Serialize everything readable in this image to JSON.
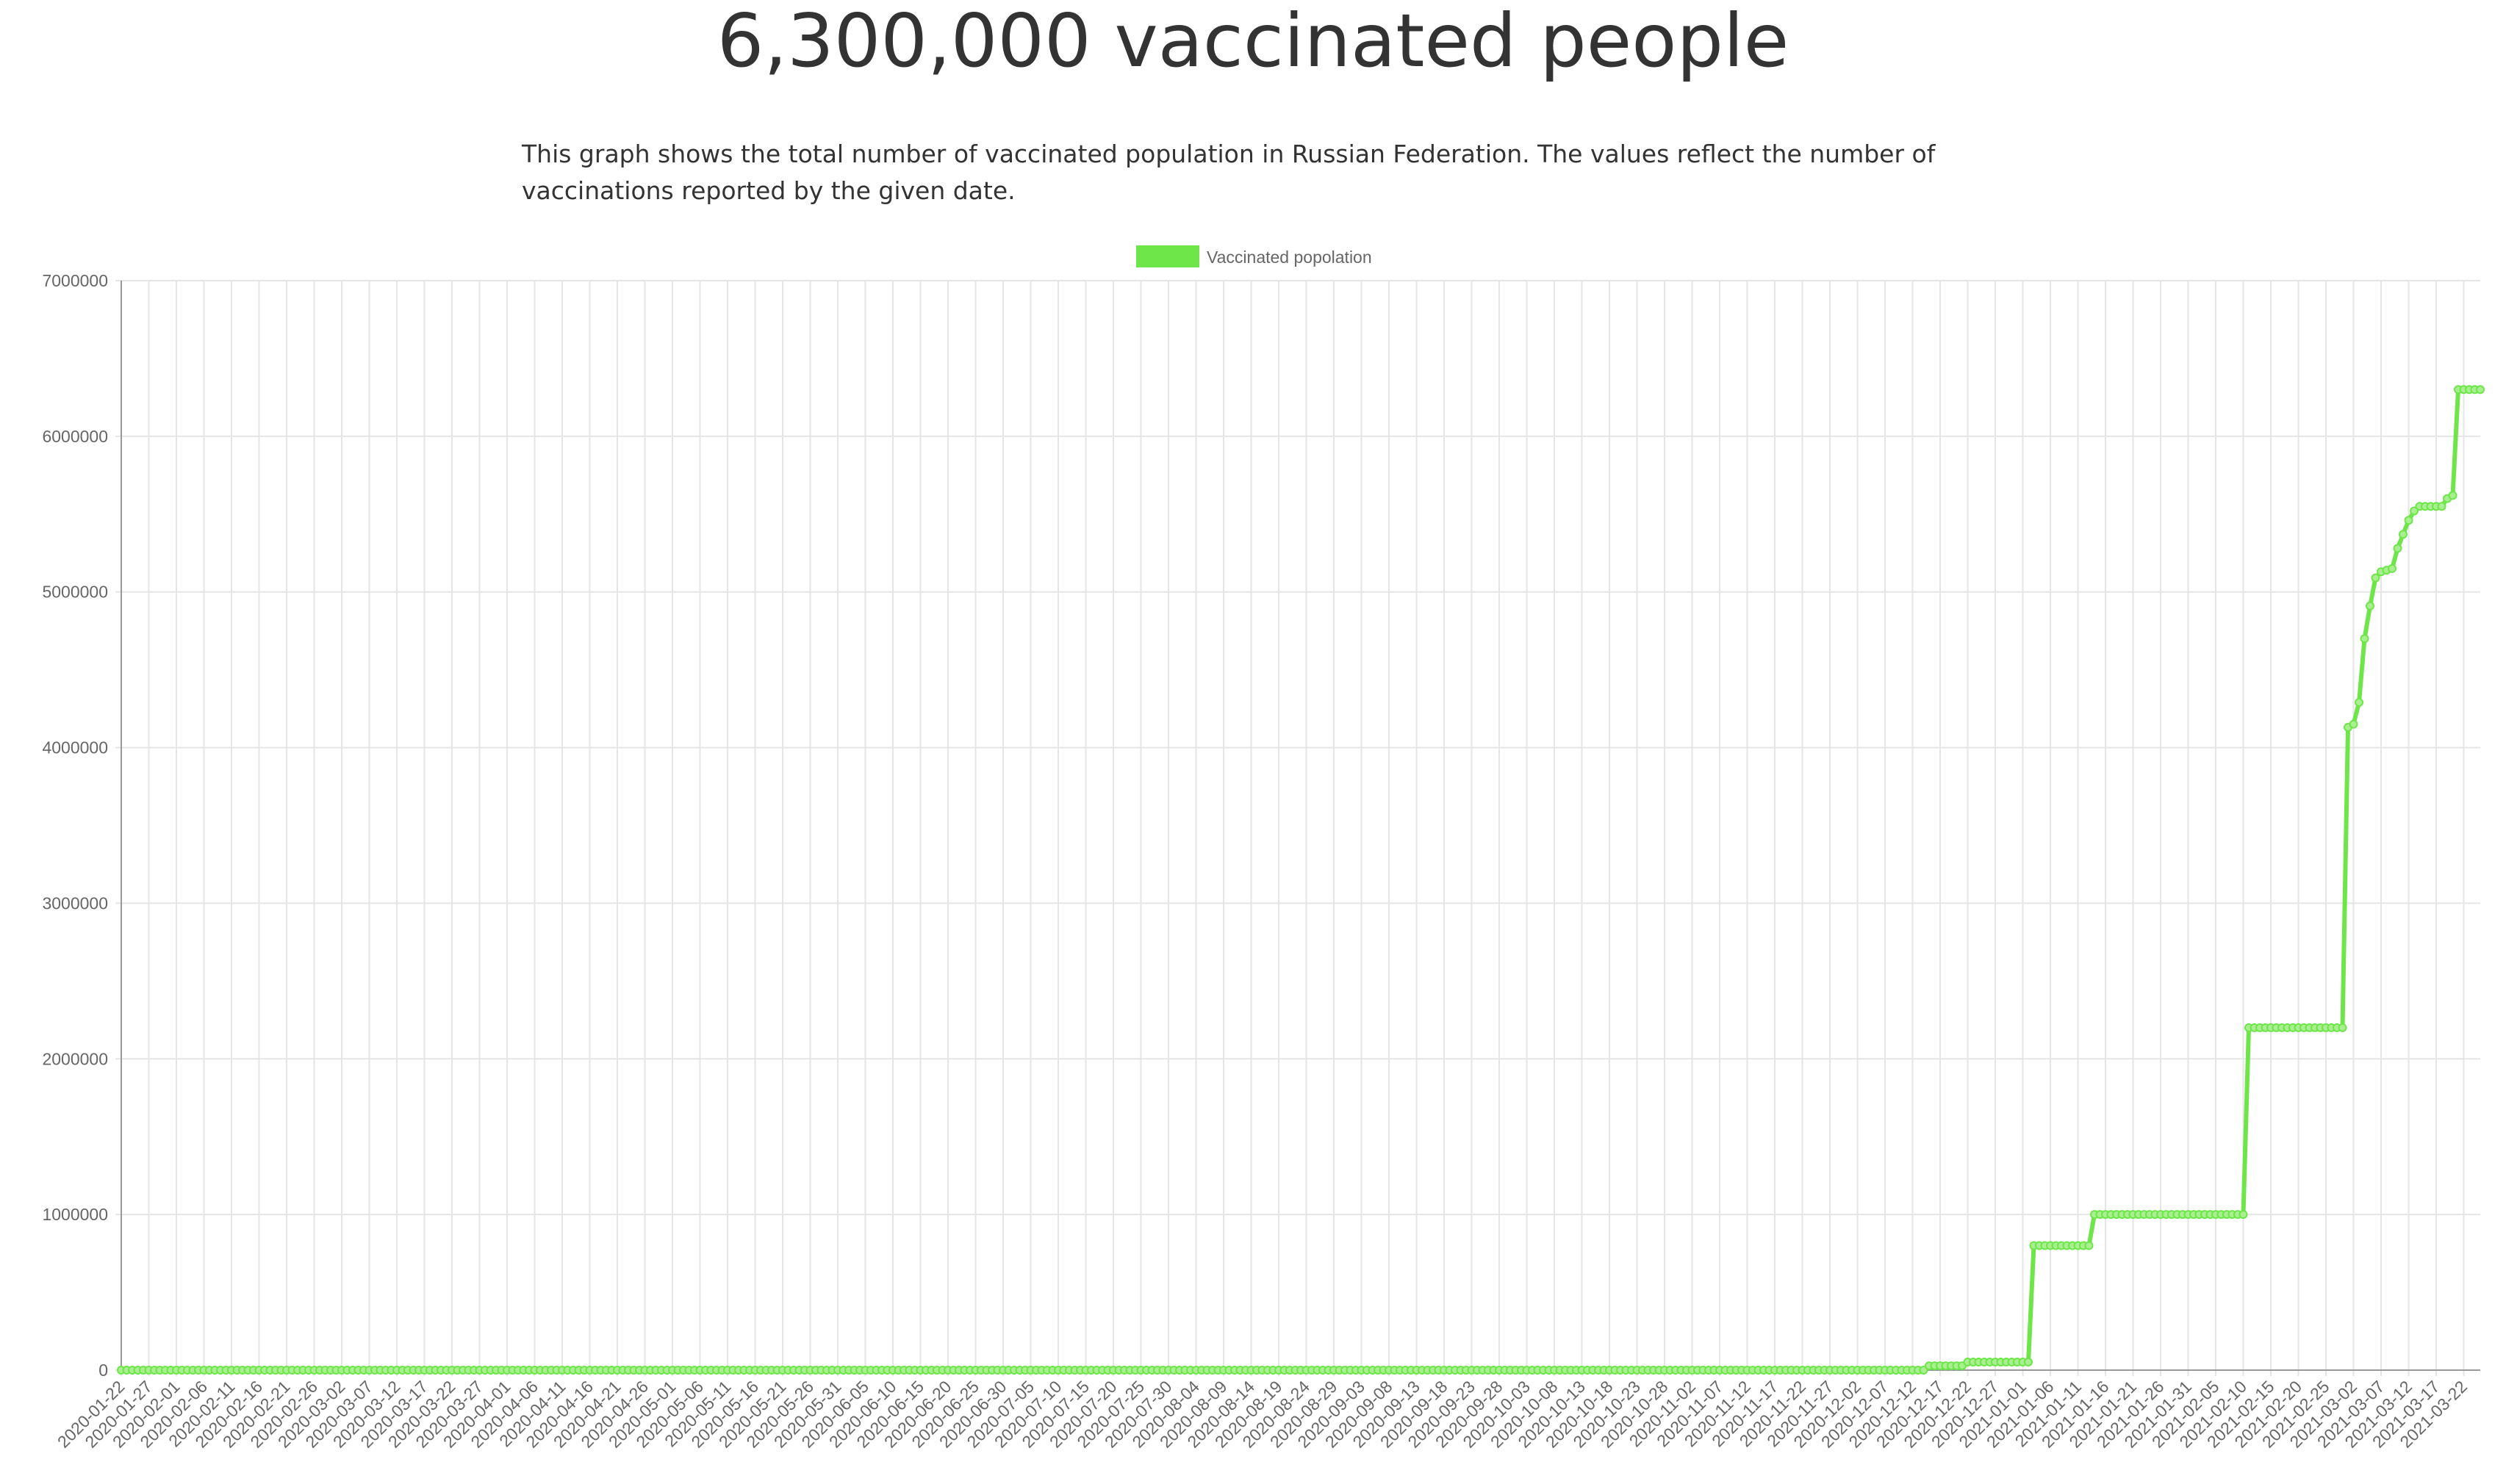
{
  "page": {
    "title": "6,300,000 vaccinated people",
    "description": "This graph shows the total number of vaccinated population in Russian Federation. The values reflect the number of vaccinations reported by the given date."
  },
  "chart_data": {
    "type": "line",
    "title": "",
    "xlabel": "",
    "ylabel": "",
    "ylim": [
      0,
      7000000
    ],
    "yticks": [
      0,
      1000000,
      2000000,
      3000000,
      4000000,
      5000000,
      6000000,
      7000000
    ],
    "x_start": "2020-01-22",
    "x_end": "2021-03-25",
    "x_tick_every_days": 5,
    "grid": true,
    "legend_position": "top",
    "series": [
      {
        "name": "Vaccinated popolation",
        "color": "#6ee64a",
        "points": [
          [
            "2020-01-22",
            0
          ],
          [
            "2020-12-14",
            0
          ],
          [
            "2020-12-15",
            28000
          ],
          [
            "2020-12-21",
            28000
          ],
          [
            "2020-12-22",
            52000
          ],
          [
            "2021-01-02",
            52000
          ],
          [
            "2021-01-03",
            800000
          ],
          [
            "2021-01-13",
            800000
          ],
          [
            "2021-01-14",
            1000000
          ],
          [
            "2021-02-10",
            1000000
          ],
          [
            "2021-02-11",
            2200000
          ],
          [
            "2021-02-28",
            2200000
          ],
          [
            "2021-03-01",
            4130000
          ],
          [
            "2021-03-02",
            4150000
          ],
          [
            "2021-03-03",
            4290000
          ],
          [
            "2021-03-04",
            4700000
          ],
          [
            "2021-03-05",
            4910000
          ],
          [
            "2021-03-06",
            5090000
          ],
          [
            "2021-03-07",
            5130000
          ],
          [
            "2021-03-08",
            5140000
          ],
          [
            "2021-03-09",
            5150000
          ],
          [
            "2021-03-10",
            5280000
          ],
          [
            "2021-03-11",
            5370000
          ],
          [
            "2021-03-12",
            5460000
          ],
          [
            "2021-03-13",
            5520000
          ],
          [
            "2021-03-14",
            5550000
          ],
          [
            "2021-03-18",
            5550000
          ],
          [
            "2021-03-19",
            5600000
          ],
          [
            "2021-03-20",
            5620000
          ],
          [
            "2021-03-21",
            6300000
          ],
          [
            "2021-03-25",
            6300000
          ]
        ]
      }
    ]
  }
}
